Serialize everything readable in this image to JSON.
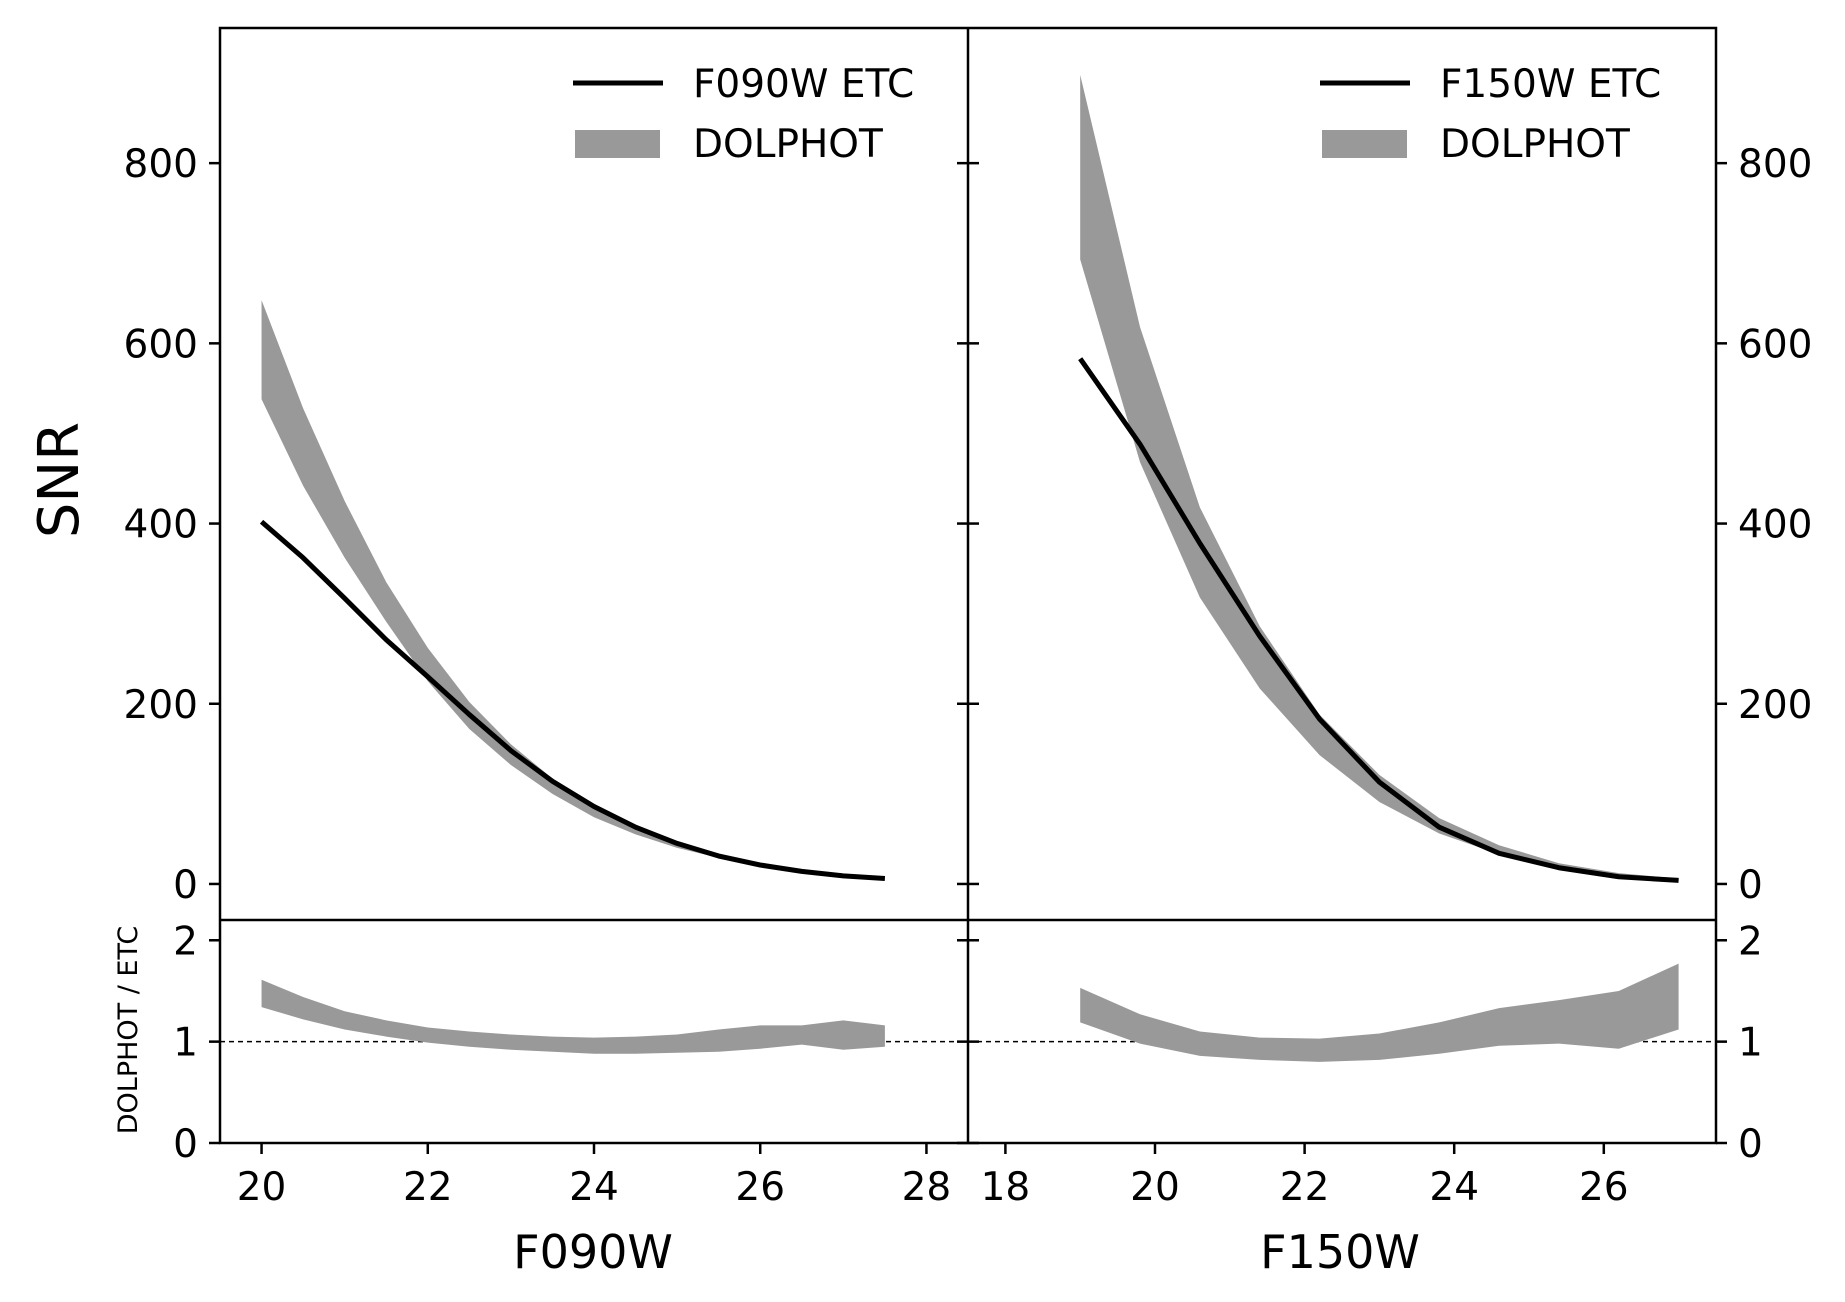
{
  "chart_data": [
    {
      "type": "line",
      "panel": "left-top",
      "xlabel": "F090W",
      "ylabel": "SNR",
      "xlim": [
        19.5,
        28.5
      ],
      "ylim": [
        -40,
        950
      ],
      "xticks": [
        "20",
        "22",
        "24",
        "26",
        "28"
      ],
      "yticks": [
        "0",
        "200",
        "400",
        "600",
        "800"
      ],
      "legend_position": "top-right",
      "series": [
        {
          "name": "F090W ETC",
          "style": "line",
          "color": "#000000",
          "x": [
            20,
            20.5,
            21,
            21.5,
            22,
            22.5,
            23,
            23.5,
            24,
            24.5,
            25,
            25.5,
            26,
            26.5,
            27,
            27.5
          ],
          "y": [
            402,
            362,
            317,
            271,
            230,
            188,
            148,
            114,
            86,
            63,
            45,
            31,
            21,
            14,
            9,
            6
          ]
        },
        {
          "name": "DOLPHOT",
          "style": "band",
          "color": "#999999",
          "x": [
            20,
            20.5,
            21,
            21.5,
            22,
            22.5,
            23,
            23.5,
            24,
            24.5,
            25,
            25.5,
            26,
            26.5,
            27,
            27.5
          ],
          "lower": [
            538,
            442,
            362,
            291,
            225,
            172,
            132,
            100,
            74,
            55,
            40,
            29,
            20,
            14,
            9,
            5
          ],
          "upper": [
            648,
            528,
            425,
            335,
            262,
            202,
            155,
            117,
            88,
            66,
            47,
            34,
            24,
            16,
            11,
            7
          ]
        }
      ]
    },
    {
      "type": "area",
      "panel": "left-bottom",
      "xlabel": "F090W",
      "ylabel": "DOLPHOT / ETC",
      "xlim": [
        19.5,
        28.5
      ],
      "ylim": [
        0,
        2.2
      ],
      "yticks": [
        "0",
        "1",
        "2"
      ],
      "reference_line": 1,
      "series": [
        {
          "name": "DOLPHOT / ETC",
          "style": "band",
          "color": "#999999",
          "x": [
            20,
            20.5,
            21,
            21.5,
            22,
            22.5,
            23,
            23.5,
            24,
            24.5,
            25,
            25.5,
            26,
            26.5,
            27,
            27.5
          ],
          "lower": [
            1.34,
            1.22,
            1.12,
            1.05,
            0.99,
            0.95,
            0.92,
            0.9,
            0.88,
            0.88,
            0.89,
            0.9,
            0.93,
            0.97,
            0.92,
            0.95
          ],
          "upper": [
            1.61,
            1.44,
            1.3,
            1.21,
            1.14,
            1.1,
            1.07,
            1.05,
            1.04,
            1.05,
            1.07,
            1.12,
            1.16,
            1.16,
            1.21,
            1.16
          ]
        }
      ]
    },
    {
      "type": "line",
      "panel": "right-top",
      "xlabel": "F150W",
      "ylabel": "SNR",
      "xlim": [
        17.5,
        27.5
      ],
      "ylim": [
        -40,
        950
      ],
      "xticks": [
        "18",
        "20",
        "22",
        "24",
        "26"
      ],
      "yticks": [
        "0",
        "200",
        "400",
        "600",
        "800"
      ],
      "legend_position": "top-right",
      "series": [
        {
          "name": "F150W ETC",
          "style": "line",
          "color": "#000000",
          "x": [
            19,
            19.8,
            20.6,
            21.4,
            22.2,
            23,
            23.8,
            24.6,
            25.4,
            26.2,
            27
          ],
          "y": [
            583,
            488,
            378,
            275,
            183,
            113,
            63,
            34,
            18,
            8,
            4
          ]
        },
        {
          "name": "DOLPHOT",
          "style": "band",
          "color": "#999999",
          "x": [
            19,
            19.8,
            20.6,
            21.4,
            22.2,
            23,
            23.8,
            24.6,
            25.4,
            26.2,
            27
          ],
          "lower": [
            693,
            468,
            318,
            217,
            143,
            91,
            56,
            33,
            18,
            8,
            3
          ],
          "upper": [
            898,
            618,
            418,
            286,
            188,
            121,
            73,
            43,
            23,
            12,
            6
          ]
        }
      ]
    },
    {
      "type": "area",
      "panel": "right-bottom",
      "xlabel": "F150W",
      "ylabel": "DOLPHOT / ETC",
      "xlim": [
        17.5,
        27.5
      ],
      "ylim": [
        0,
        2.2
      ],
      "yticks": [
        "0",
        "1",
        "2"
      ],
      "reference_line": 1,
      "series": [
        {
          "name": "DOLPHOT / ETC",
          "style": "band",
          "color": "#999999",
          "x": [
            19,
            19.8,
            20.6,
            21.4,
            22.2,
            23,
            23.8,
            24.6,
            25.4,
            26.2,
            27
          ],
          "lower": [
            1.19,
            0.98,
            0.86,
            0.82,
            0.8,
            0.82,
            0.88,
            0.96,
            0.98,
            0.93,
            1.12
          ],
          "upper": [
            1.53,
            1.27,
            1.1,
            1.04,
            1.03,
            1.08,
            1.19,
            1.33,
            1.41,
            1.5,
            1.77
          ]
        }
      ]
    }
  ]
}
